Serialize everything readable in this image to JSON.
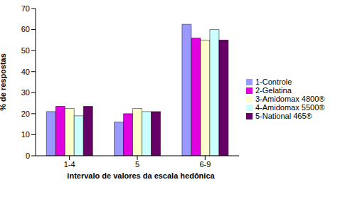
{
  "chart_data": {
    "type": "bar",
    "x_label": "intervalo de valores da escala hedônica",
    "y_label": "% de respostas",
    "categories": [
      "1-4",
      "5",
      "6-9"
    ],
    "series": [
      {
        "name": "1-Controle",
        "color": "#9999ff",
        "values": [
          21,
          16,
          62.5
        ]
      },
      {
        "name": "2-Gelatina",
        "color": "#e000e0",
        "values": [
          23.5,
          20,
          56
        ]
      },
      {
        "name": "3-Amidomax 4800®",
        "color": "#ffffcc",
        "values": [
          22.5,
          22.5,
          55
        ]
      },
      {
        "name": "4-Amidomax 5500®",
        "color": "#ccffff",
        "values": [
          19,
          21,
          60
        ]
      },
      {
        "name": "5-National 465®",
        "color": "#660066",
        "values": [
          23.5,
          21,
          55
        ]
      }
    ],
    "ylim": [
      0,
      70
    ],
    "yticks": [
      0,
      10,
      20,
      30,
      40,
      50,
      60,
      70
    ],
    "grid": false,
    "legend": "right"
  }
}
